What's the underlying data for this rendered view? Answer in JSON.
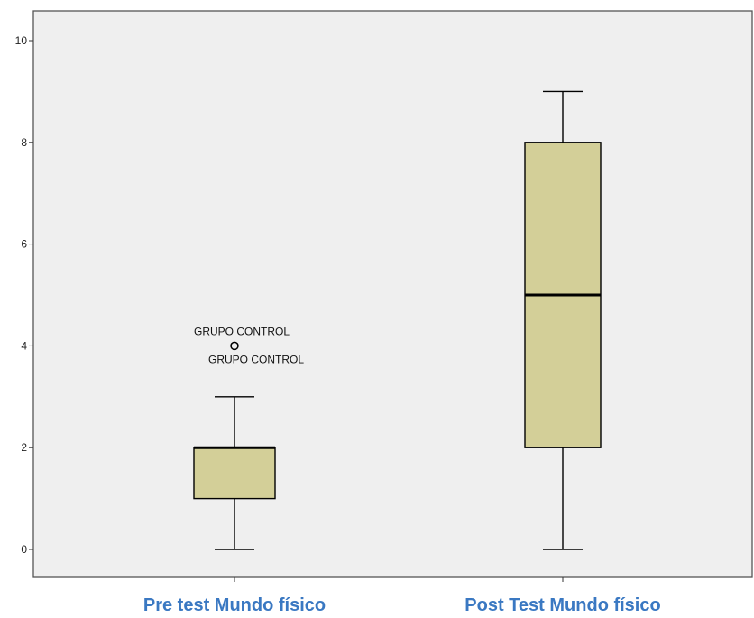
{
  "chart_data": {
    "type": "boxplot",
    "categories": [
      "Pre test Mundo físico",
      "Post Test Mundo físico"
    ],
    "boxes": [
      {
        "category": "Pre test Mundo físico",
        "min": 0,
        "q1": 1,
        "median": 2,
        "q3": 2,
        "max": 3,
        "outliers": [
          {
            "value": 4,
            "labels": [
              "GRUPO CONTROL",
              "GRUPO CONTROL"
            ]
          }
        ]
      },
      {
        "category": "Post Test Mundo físico",
        "min": 0,
        "q1": 2,
        "median": 5,
        "q3": 8,
        "max": 9,
        "outliers": []
      }
    ],
    "y_ticks": [
      "0",
      "2",
      "4",
      "6",
      "8",
      "10"
    ],
    "ylim": [
      -0.5,
      10.6
    ],
    "grid": false,
    "colors": {
      "box_fill": "#d3cf98",
      "plot_background": "#efefef",
      "category_label": "#3a78c2"
    }
  }
}
